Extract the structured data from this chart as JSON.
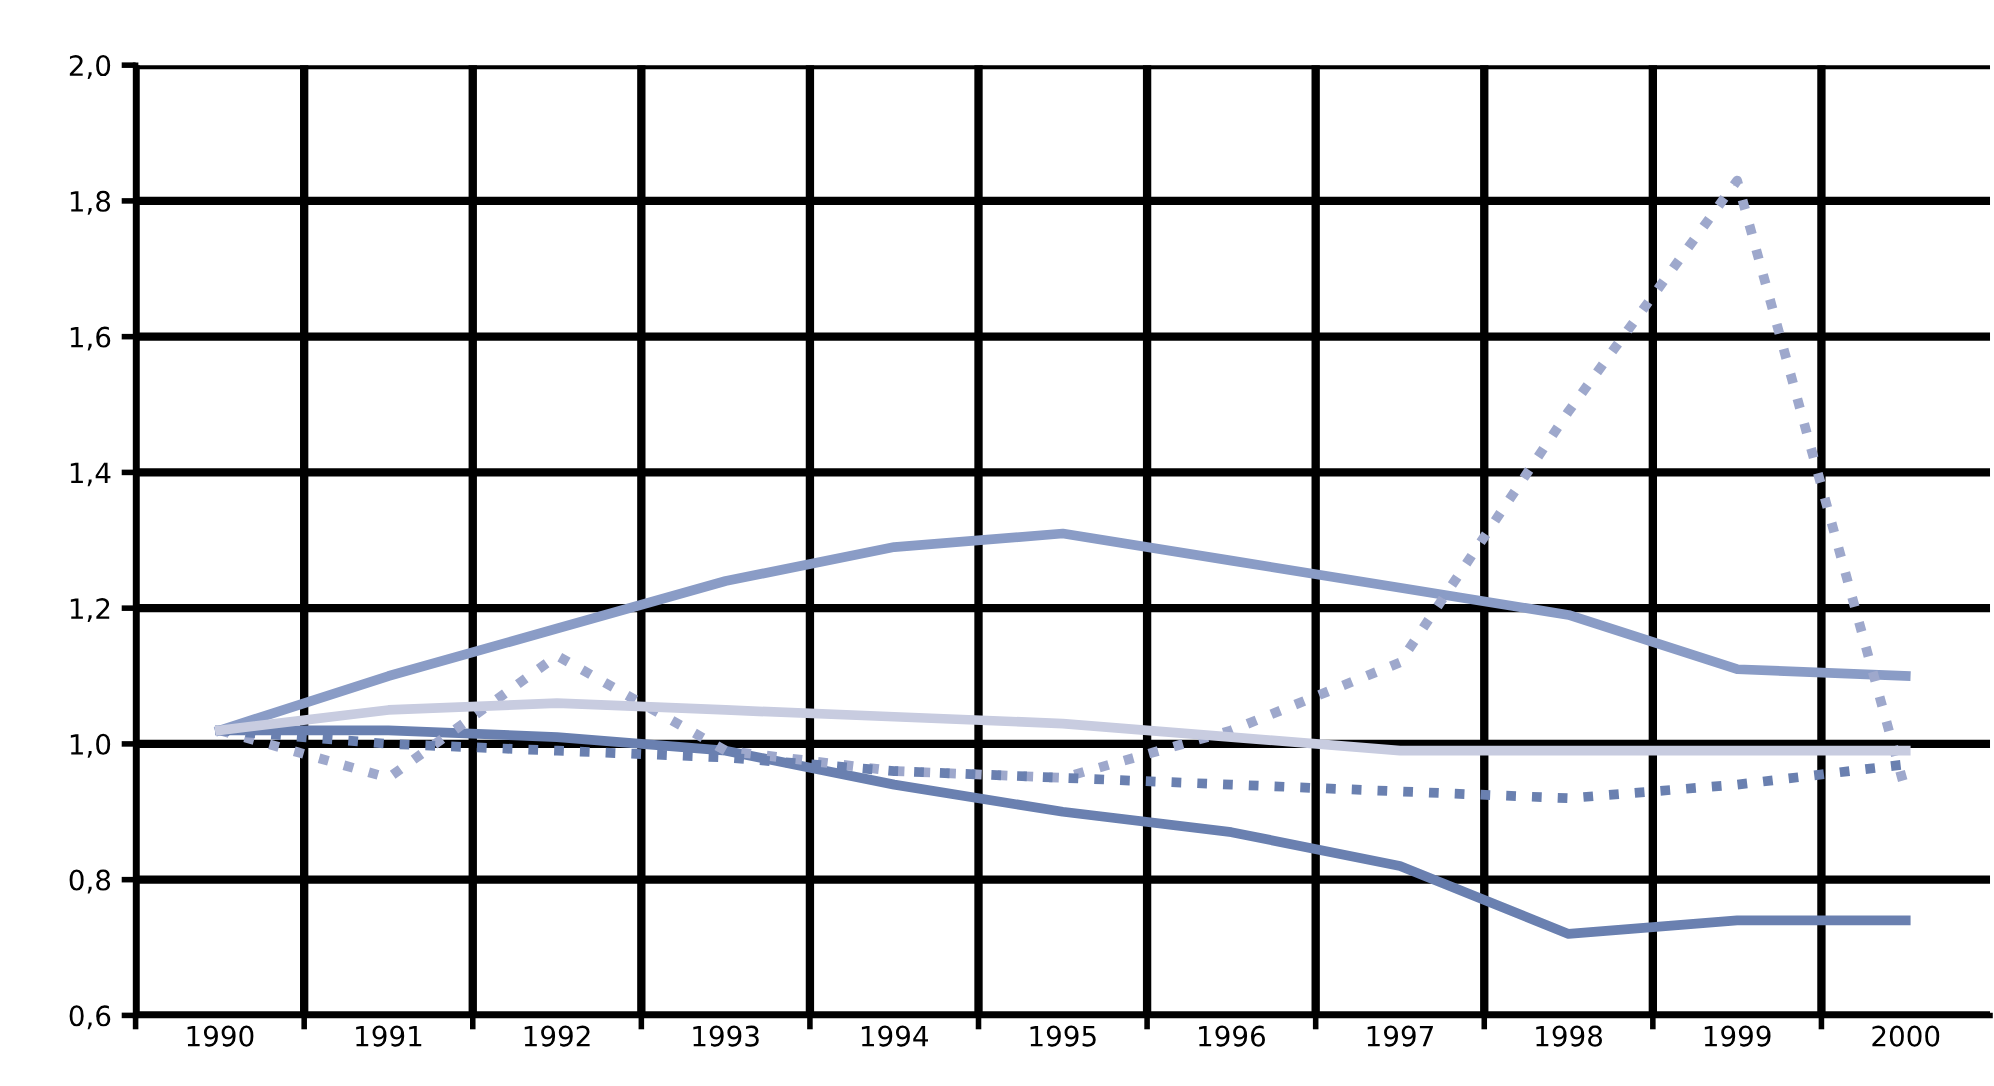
{
  "chart_data": {
    "type": "line",
    "categories": [
      "1990",
      "1991",
      "1992",
      "1993",
      "1994",
      "1995",
      "1996",
      "1997",
      "1998",
      "1999",
      "2000"
    ],
    "series": [
      {
        "color": "#8a9cc6",
        "line_style": "solid",
        "values": [
          1.02,
          1.1,
          1.17,
          1.24,
          1.29,
          1.31,
          1.27,
          1.23,
          1.19,
          1.11,
          1.1
        ]
      },
      {
        "color": "#6a80b0",
        "line_style": "solid",
        "values": [
          1.02,
          1.02,
          1.01,
          0.99,
          0.94,
          0.9,
          0.87,
          0.82,
          0.72,
          0.74,
          0.74
        ]
      },
      {
        "color": "#9ea8cc",
        "line_style": "dotted",
        "values": [
          1.02,
          0.95,
          1.13,
          0.99,
          0.96,
          0.95,
          1.02,
          1.12,
          1.49,
          1.83,
          0.93
        ]
      },
      {
        "color": "#6a80b0",
        "line_style": "dotted",
        "values": [
          1.02,
          1.0,
          0.99,
          0.98,
          0.96,
          0.95,
          0.94,
          0.93,
          0.92,
          0.94,
          0.97
        ]
      },
      {
        "color": "#c8cce0",
        "line_style": "solid",
        "values": [
          1.02,
          1.05,
          1.06,
          1.05,
          1.04,
          1.03,
          1.01,
          0.99,
          0.99,
          0.99,
          0.99
        ]
      }
    ],
    "ylim": [
      0.6,
      2.0
    ],
    "yticks": [
      {
        "value": 0.6,
        "label": "0,6"
      },
      {
        "value": 0.8,
        "label": "0,8"
      },
      {
        "value": 1.0,
        "label": "1,0"
      },
      {
        "value": 1.2,
        "label": "1,2"
      },
      {
        "value": 1.4,
        "label": "1,4"
      },
      {
        "value": 1.6,
        "label": "1,6"
      },
      {
        "value": 1.8,
        "label": "1,8"
      },
      {
        "value": 2.0,
        "label": "2,0"
      }
    ],
    "grid": true
  }
}
